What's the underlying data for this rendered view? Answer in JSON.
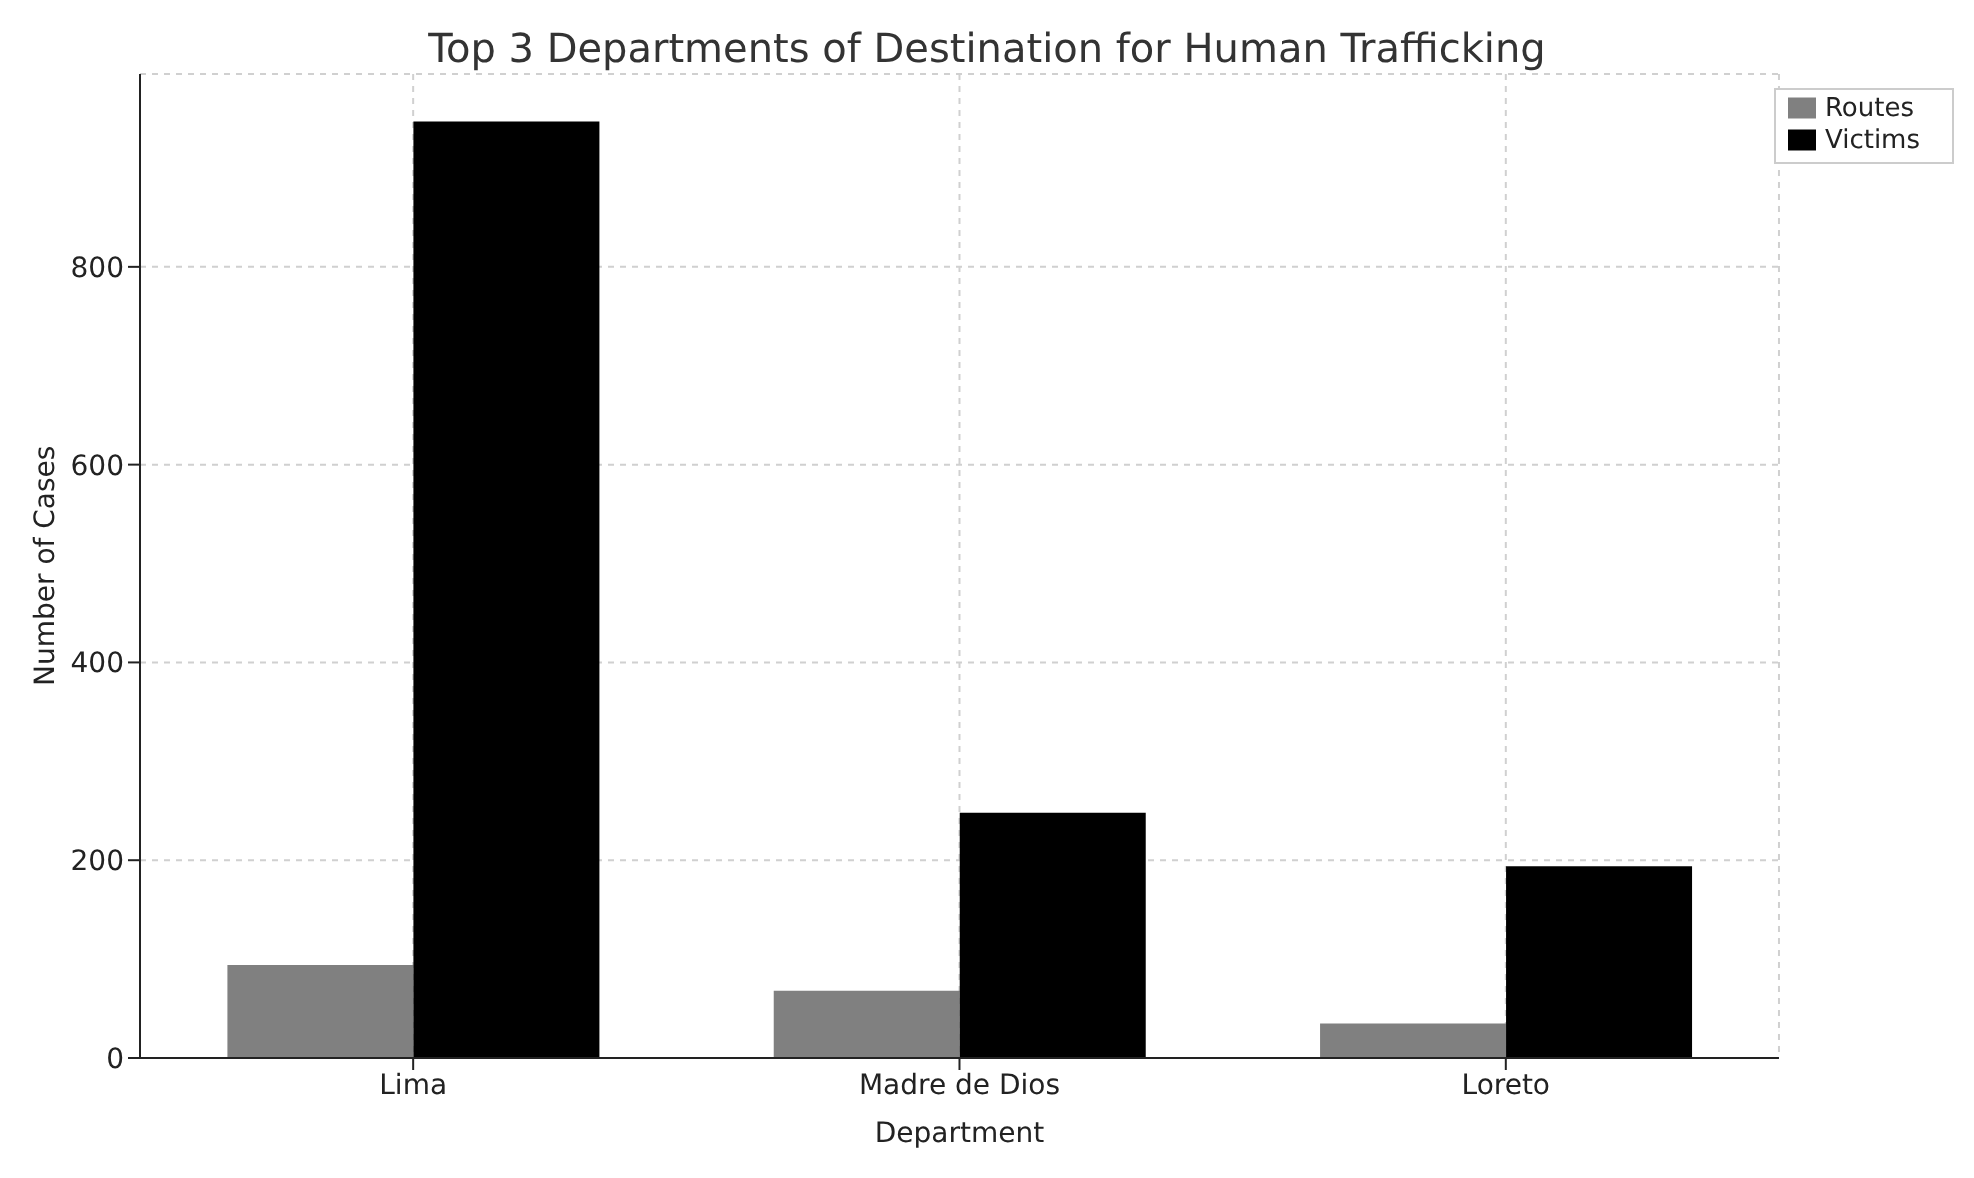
{
  "chart_data": {
    "type": "bar",
    "title": "Top 3 Departments of Destination for Human Trafficking",
    "xlabel": "Department",
    "ylabel": "Number of Cases",
    "categories": [
      "Lima",
      "Madre de Dios",
      "Loreto"
    ],
    "series": [
      {
        "name": "Routes",
        "color": "#808080",
        "values": [
          94,
          68,
          35
        ]
      },
      {
        "name": "Victims",
        "color": "#000000",
        "values": [
          947,
          248,
          194
        ]
      }
    ],
    "ylim": [
      0,
      995
    ],
    "yticks": [
      0,
      200,
      400,
      600,
      800
    ],
    "grid": true,
    "legend": "top right"
  }
}
